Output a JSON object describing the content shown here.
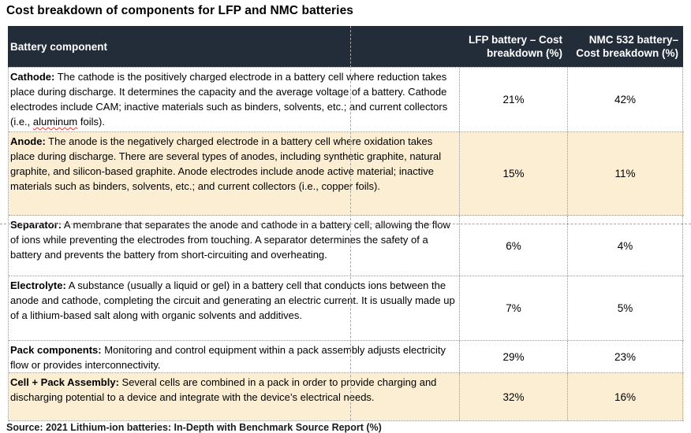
{
  "title": "Cost breakdown of components for LFP and NMC batteries",
  "table": {
    "columns": {
      "component": "Battery component",
      "lfp": "LFP battery – Cost breakdown (%)",
      "nmc": "NMC 532 battery– Cost breakdown (%)"
    },
    "rows": [
      {
        "component": "Cathode:",
        "description_segments": [
          {
            "text": " The cathode is the positively charged electrode in a battery cell where reduction takes place during discharge. It determines the capacity and the average voltage of a battery. Cathode electrodes include CAM; inactive materials such as binders, solvents, etc.; and current collectors (i.e., ",
            "misspelled": false
          },
          {
            "text": "aluminum",
            "misspelled": true
          },
          {
            "text": " foils).",
            "misspelled": false
          }
        ],
        "lfp": "21%",
        "nmc": "42%",
        "shaded": false
      },
      {
        "component": "Anode:",
        "description_segments": [
          {
            "text": " The anode is the negatively charged electrode in a battery cell where oxidation takes place during discharge. There are several types of anodes, including synthetic graphite, natural graphite, and silicon-based graphite. Anode electrodes include anode active material; inactive materials such as binders, solvents, etc.; and current collectors (i.e., copper foils).",
            "misspelled": false
          }
        ],
        "lfp": "15%",
        "nmc": "11%",
        "shaded": true
      },
      {
        "component": "Separator:",
        "description_segments": [
          {
            "text": " A membrane that separates the anode and cathode in a battery cell, allowing the flow of ions while preventing the electrodes from touching. A separator determines the safety of a battery and prevents the battery from short-circuiting and overheating.",
            "misspelled": false
          }
        ],
        "lfp": "6%",
        "nmc": "4%",
        "shaded": false
      },
      {
        "component": "Electrolyte:",
        "description_segments": [
          {
            "text": " A substance (usually a liquid or gel) in a battery cell that conducts ions between the anode and cathode, completing the circuit and generating an electric current. It is usually made up of a lithium-based salt along with organic solvents and additives.",
            "misspelled": false
          }
        ],
        "lfp": "7%",
        "nmc": "5%",
        "shaded": false
      },
      {
        "component": "Pack components:",
        "description_segments": [
          {
            "text": " Monitoring and control equipment within a pack assembly adjusts electricity flow or provides interconnectivity.",
            "misspelled": false
          }
        ],
        "lfp": "29%",
        "nmc": "23%",
        "shaded": false
      },
      {
        "component": "Cell + Pack Assembly:",
        "description_segments": [
          {
            "text": " Several cells are combined in a pack in order to provide charging and discharging potential to a device and integrate with the device’s electrical needs.",
            "misspelled": false
          }
        ],
        "lfp": "32%",
        "nmc": "16%",
        "shaded": true
      }
    ]
  },
  "footer": "Source: 2021 Lithium-ion batteries: In-Depth with Benchmark Source Report (%)",
  "colors": {
    "header_bg": "#232C39",
    "header_text": "#FFFFFF",
    "shaded_row": "#FCEED3",
    "grid": "#999999",
    "guide": "#A6A6A6",
    "squiggle": "#E53935"
  }
}
